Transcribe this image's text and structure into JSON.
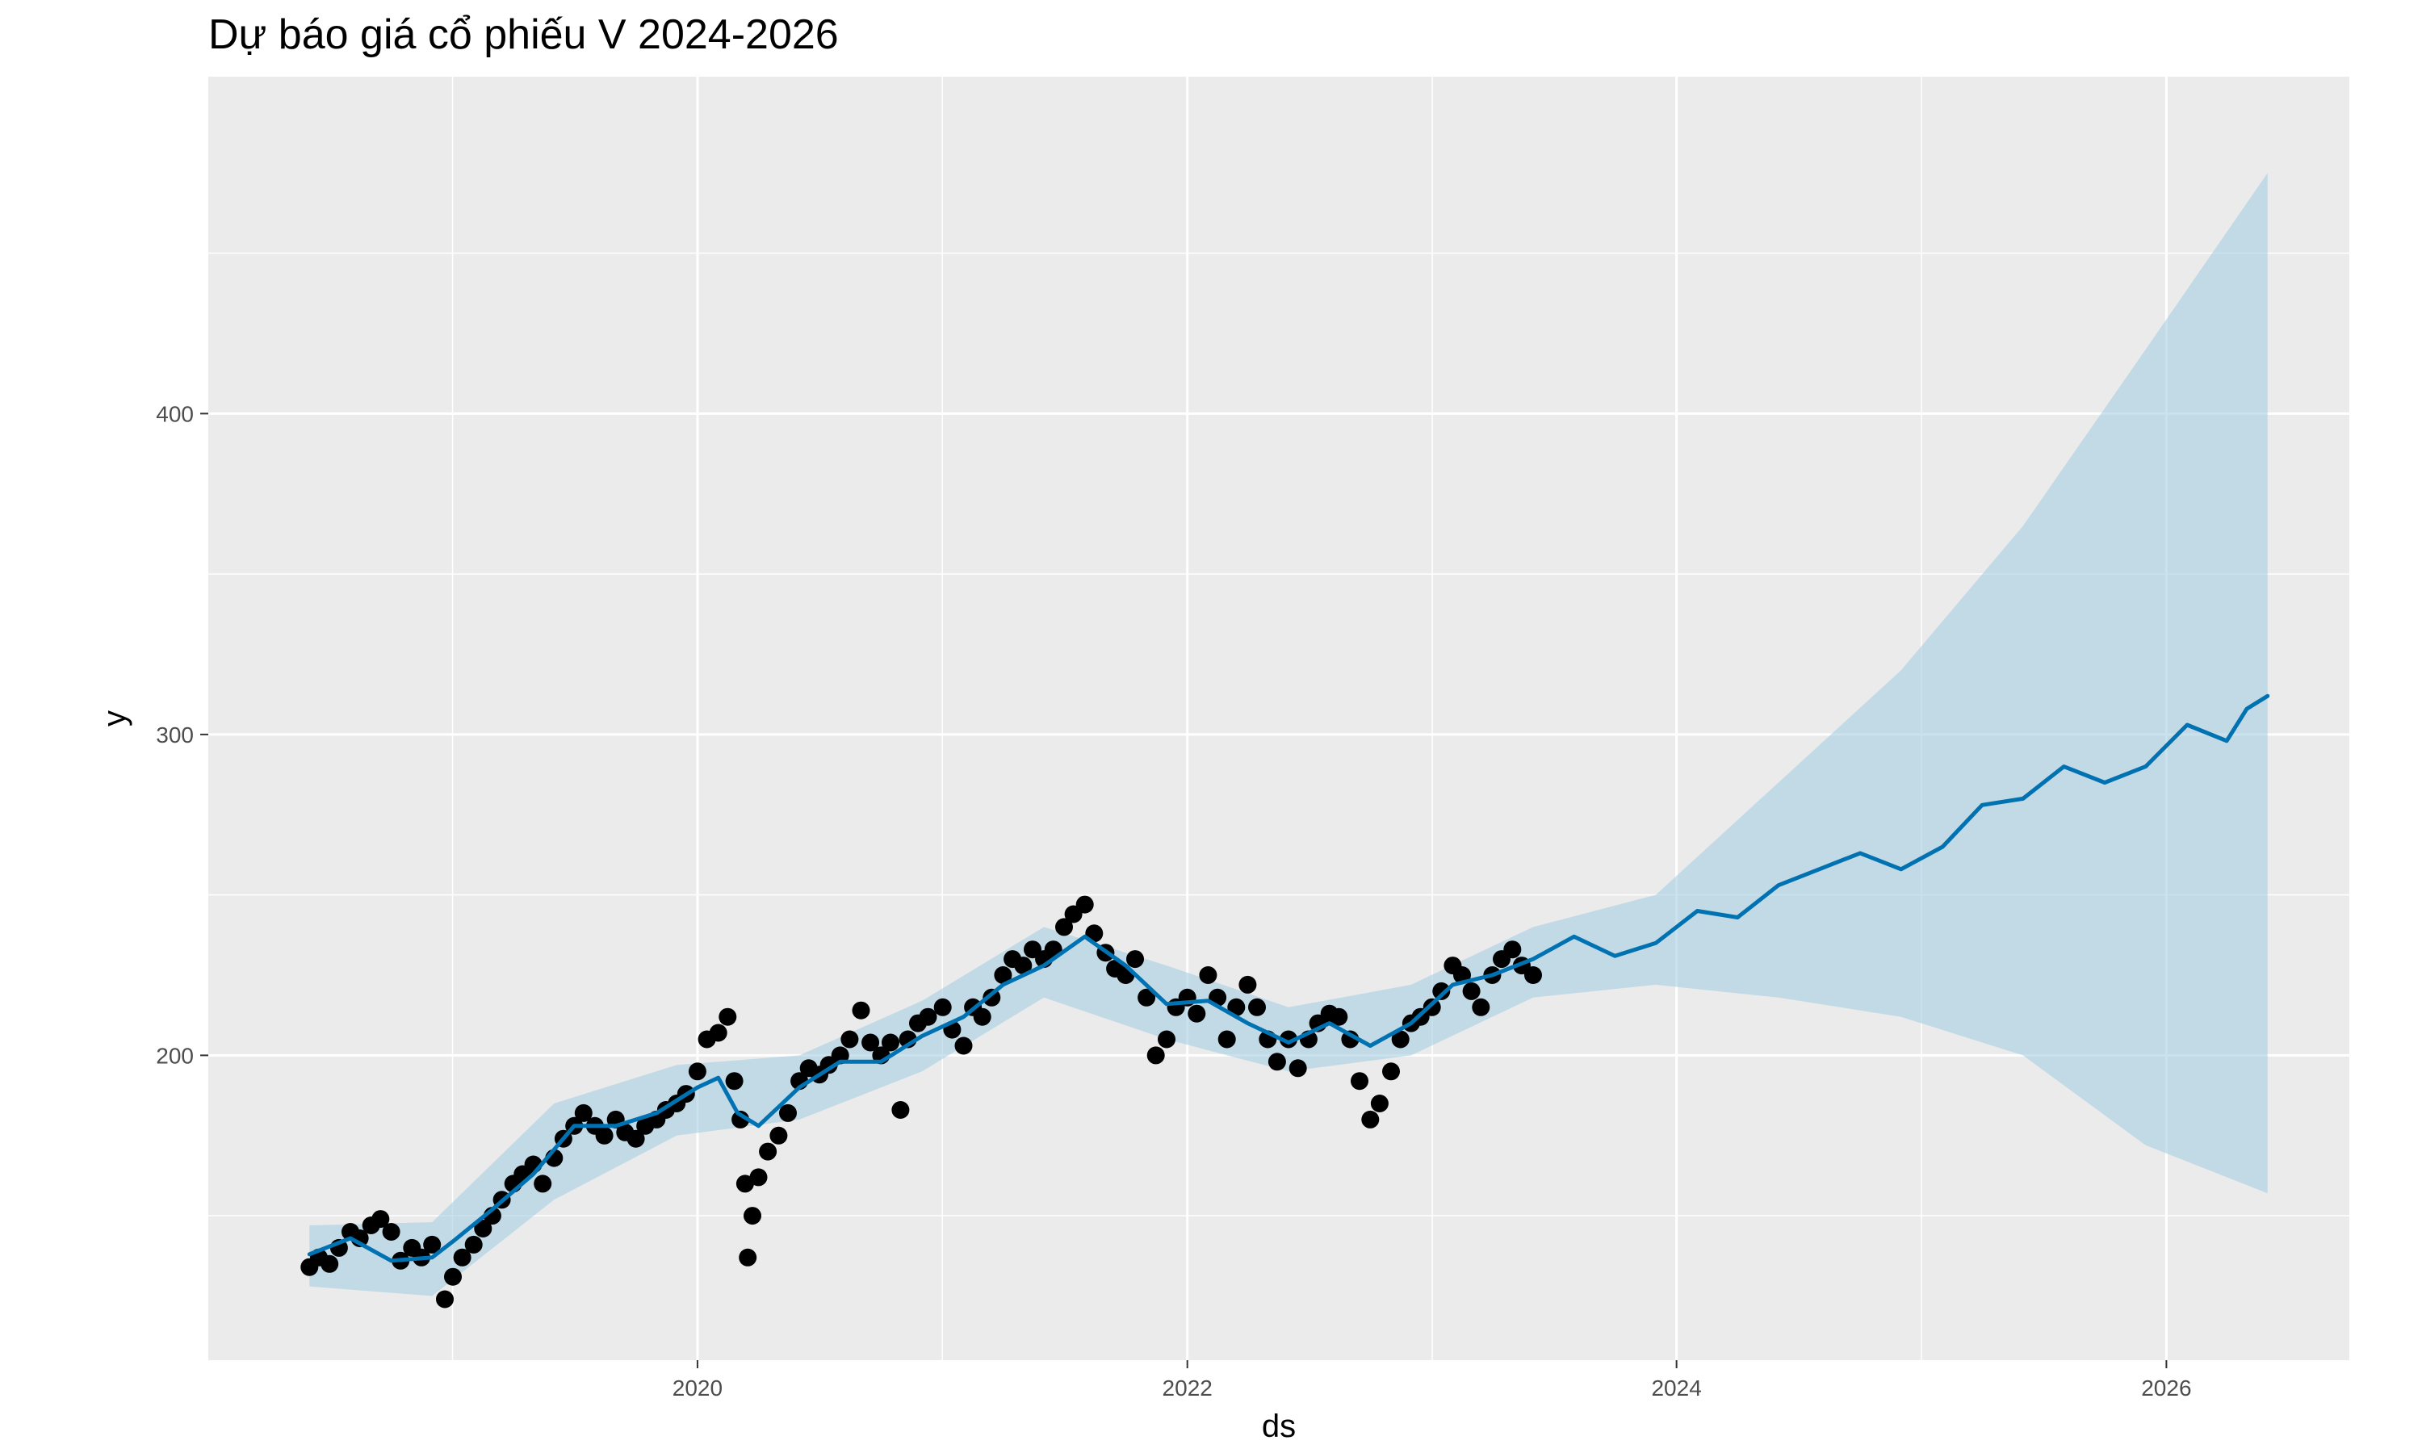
{
  "chart_data": {
    "type": "line",
    "title": "Dự báo giá cổ phiếu V 2024-2026",
    "xlabel": "ds",
    "ylabel": "y",
    "x_axis": {
      "type": "date",
      "range": [
        "2018-01-01",
        "2026-10-01"
      ],
      "ticks": [
        {
          "value": "2020-01-01",
          "label": "2020"
        },
        {
          "value": "2022-01-01",
          "label": "2022"
        },
        {
          "value": "2024-01-01",
          "label": "2024"
        },
        {
          "value": "2026-01-01",
          "label": "2026"
        }
      ]
    },
    "y_axis": {
      "range": [
        105,
        505
      ],
      "ticks": [
        {
          "value": 200,
          "label": "200"
        },
        {
          "value": 300,
          "label": "300"
        },
        {
          "value": 400,
          "label": "400"
        }
      ]
    },
    "grid": true,
    "legend": "none",
    "colors": {
      "panel": "#ebebeb",
      "grid": "#ffffff",
      "points": "#000000",
      "forecast_line": "#0072b2",
      "interval_band": "#a6cee3"
    },
    "series": [
      {
        "kind": "points",
        "data": [
          [
            "2018-06-01",
            134
          ],
          [
            "2018-06-15",
            137
          ],
          [
            "2018-07-01",
            135
          ],
          [
            "2018-07-15",
            140
          ],
          [
            "2018-08-01",
            145
          ],
          [
            "2018-08-15",
            143
          ],
          [
            "2018-09-01",
            147
          ],
          [
            "2018-09-15",
            149
          ],
          [
            "2018-10-01",
            145
          ],
          [
            "2018-10-15",
            136
          ],
          [
            "2018-11-01",
            140
          ],
          [
            "2018-11-15",
            137
          ],
          [
            "2018-12-01",
            141
          ],
          [
            "2018-12-20",
            124
          ],
          [
            "2019-01-01",
            131
          ],
          [
            "2019-01-15",
            137
          ],
          [
            "2019-02-01",
            141
          ],
          [
            "2019-02-15",
            146
          ],
          [
            "2019-03-01",
            150
          ],
          [
            "2019-03-15",
            155
          ],
          [
            "2019-04-01",
            160
          ],
          [
            "2019-04-15",
            163
          ],
          [
            "2019-05-01",
            166
          ],
          [
            "2019-05-15",
            160
          ],
          [
            "2019-06-01",
            168
          ],
          [
            "2019-06-15",
            174
          ],
          [
            "2019-07-01",
            178
          ],
          [
            "2019-07-15",
            182
          ],
          [
            "2019-08-01",
            178
          ],
          [
            "2019-08-15",
            175
          ],
          [
            "2019-09-01",
            180
          ],
          [
            "2019-09-15",
            176
          ],
          [
            "2019-10-01",
            174
          ],
          [
            "2019-10-15",
            178
          ],
          [
            "2019-11-01",
            180
          ],
          [
            "2019-11-15",
            183
          ],
          [
            "2019-12-01",
            185
          ],
          [
            "2019-12-15",
            188
          ],
          [
            "2020-01-01",
            195
          ],
          [
            "2020-01-15",
            205
          ],
          [
            "2020-02-01",
            207
          ],
          [
            "2020-02-15",
            212
          ],
          [
            "2020-02-25",
            192
          ],
          [
            "2020-03-05",
            180
          ],
          [
            "2020-03-12",
            160
          ],
          [
            "2020-03-16",
            137
          ],
          [
            "2020-03-23",
            150
          ],
          [
            "2020-04-01",
            162
          ],
          [
            "2020-04-15",
            170
          ],
          [
            "2020-05-01",
            175
          ],
          [
            "2020-05-15",
            182
          ],
          [
            "2020-06-01",
            192
          ],
          [
            "2020-06-15",
            196
          ],
          [
            "2020-07-01",
            194
          ],
          [
            "2020-07-15",
            197
          ],
          [
            "2020-08-01",
            200
          ],
          [
            "2020-08-15",
            205
          ],
          [
            "2020-09-01",
            214
          ],
          [
            "2020-09-15",
            204
          ],
          [
            "2020-10-01",
            200
          ],
          [
            "2020-10-15",
            204
          ],
          [
            "2020-10-30",
            183
          ],
          [
            "2020-11-10",
            205
          ],
          [
            "2020-11-25",
            210
          ],
          [
            "2020-12-10",
            212
          ],
          [
            "2021-01-01",
            215
          ],
          [
            "2021-01-15",
            208
          ],
          [
            "2021-02-01",
            203
          ],
          [
            "2021-02-15",
            215
          ],
          [
            "2021-03-01",
            212
          ],
          [
            "2021-03-15",
            218
          ],
          [
            "2021-04-01",
            225
          ],
          [
            "2021-04-15",
            230
          ],
          [
            "2021-05-01",
            228
          ],
          [
            "2021-05-15",
            233
          ],
          [
            "2021-06-01",
            230
          ],
          [
            "2021-06-15",
            233
          ],
          [
            "2021-07-01",
            240
          ],
          [
            "2021-07-15",
            244
          ],
          [
            "2021-08-01",
            247
          ],
          [
            "2021-08-15",
            238
          ],
          [
            "2021-09-01",
            232
          ],
          [
            "2021-09-15",
            227
          ],
          [
            "2021-10-01",
            225
          ],
          [
            "2021-10-15",
            230
          ],
          [
            "2021-11-01",
            218
          ],
          [
            "2021-11-15",
            200
          ],
          [
            "2021-12-01",
            205
          ],
          [
            "2021-12-15",
            215
          ],
          [
            "2022-01-01",
            218
          ],
          [
            "2022-01-15",
            213
          ],
          [
            "2022-02-01",
            225
          ],
          [
            "2022-02-15",
            218
          ],
          [
            "2022-03-01",
            205
          ],
          [
            "2022-03-15",
            215
          ],
          [
            "2022-04-01",
            222
          ],
          [
            "2022-04-15",
            215
          ],
          [
            "2022-05-01",
            205
          ],
          [
            "2022-05-15",
            198
          ],
          [
            "2022-06-01",
            205
          ],
          [
            "2022-06-15",
            196
          ],
          [
            "2022-07-01",
            205
          ],
          [
            "2022-07-15",
            210
          ],
          [
            "2022-08-01",
            213
          ],
          [
            "2022-08-15",
            212
          ],
          [
            "2022-09-01",
            205
          ],
          [
            "2022-09-15",
            192
          ],
          [
            "2022-10-01",
            180
          ],
          [
            "2022-10-15",
            185
          ],
          [
            "2022-11-01",
            195
          ],
          [
            "2022-11-15",
            205
          ],
          [
            "2022-12-01",
            210
          ],
          [
            "2022-12-15",
            212
          ],
          [
            "2023-01-01",
            215
          ],
          [
            "2023-01-15",
            220
          ],
          [
            "2023-02-01",
            228
          ],
          [
            "2023-02-15",
            225
          ],
          [
            "2023-03-01",
            220
          ],
          [
            "2023-03-15",
            215
          ],
          [
            "2023-04-01",
            225
          ],
          [
            "2023-04-15",
            230
          ],
          [
            "2023-05-01",
            233
          ],
          [
            "2023-05-15",
            228
          ],
          [
            "2023-06-01",
            225
          ]
        ]
      },
      {
        "kind": "forecast",
        "data": [
          [
            "2018-06-01",
            138
          ],
          [
            "2018-08-01",
            143
          ],
          [
            "2018-10-01",
            136
          ],
          [
            "2018-12-01",
            137
          ],
          [
            "2019-01-01",
            142
          ],
          [
            "2019-03-01",
            152
          ],
          [
            "2019-05-01",
            163
          ],
          [
            "2019-07-01",
            178
          ],
          [
            "2019-09-01",
            178
          ],
          [
            "2019-11-01",
            182
          ],
          [
            "2020-01-01",
            190
          ],
          [
            "2020-02-01",
            193
          ],
          [
            "2020-03-01",
            182
          ],
          [
            "2020-04-01",
            178
          ],
          [
            "2020-06-01",
            190
          ],
          [
            "2020-08-01",
            198
          ],
          [
            "2020-10-01",
            198
          ],
          [
            "2020-12-01",
            206
          ],
          [
            "2021-02-01",
            212
          ],
          [
            "2021-04-01",
            222
          ],
          [
            "2021-06-01",
            228
          ],
          [
            "2021-08-01",
            237
          ],
          [
            "2021-10-01",
            228
          ],
          [
            "2021-12-01",
            216
          ],
          [
            "2022-02-01",
            217
          ],
          [
            "2022-04-01",
            210
          ],
          [
            "2022-06-01",
            204
          ],
          [
            "2022-08-01",
            210
          ],
          [
            "2022-10-01",
            203
          ],
          [
            "2022-12-01",
            210
          ],
          [
            "2023-02-01",
            222
          ],
          [
            "2023-04-01",
            225
          ],
          [
            "2023-06-01",
            230
          ],
          [
            "2023-08-01",
            237
          ],
          [
            "2023-10-01",
            231
          ],
          [
            "2023-12-01",
            235
          ],
          [
            "2024-02-01",
            245
          ],
          [
            "2024-04-01",
            243
          ],
          [
            "2024-06-01",
            253
          ],
          [
            "2024-08-01",
            258
          ],
          [
            "2024-10-01",
            263
          ],
          [
            "2024-12-01",
            258
          ],
          [
            "2025-02-01",
            265
          ],
          [
            "2025-04-01",
            278
          ],
          [
            "2025-06-01",
            280
          ],
          [
            "2025-08-01",
            290
          ],
          [
            "2025-10-01",
            285
          ],
          [
            "2025-12-01",
            290
          ],
          [
            "2026-02-01",
            303
          ],
          [
            "2026-04-01",
            298
          ],
          [
            "2026-05-01",
            308
          ],
          [
            "2026-06-01",
            312
          ]
        ]
      },
      {
        "kind": "interval",
        "data": [
          [
            "2018-06-01",
            128,
            147
          ],
          [
            "2018-12-01",
            125,
            148
          ],
          [
            "2019-06-01",
            155,
            185
          ],
          [
            "2019-12-01",
            175,
            197
          ],
          [
            "2020-06-01",
            180,
            200
          ],
          [
            "2020-12-01",
            195,
            217
          ],
          [
            "2021-06-01",
            218,
            240
          ],
          [
            "2021-12-01",
            205,
            228
          ],
          [
            "2022-06-01",
            195,
            215
          ],
          [
            "2022-12-01",
            200,
            222
          ],
          [
            "2023-06-01",
            218,
            240
          ],
          [
            "2023-12-01",
            222,
            250
          ],
          [
            "2024-06-01",
            218,
            285
          ],
          [
            "2024-12-01",
            212,
            320
          ],
          [
            "2025-06-01",
            200,
            365
          ],
          [
            "2025-12-01",
            172,
            420
          ],
          [
            "2026-06-01",
            157,
            475
          ]
        ]
      }
    ]
  }
}
